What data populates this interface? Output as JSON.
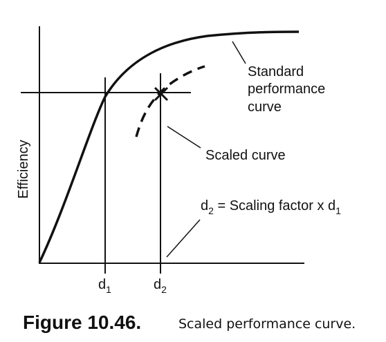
{
  "diagram": {
    "y_axis_label": "Efficiency",
    "standard_curve_label": [
      "Standard",
      "performance",
      "curve"
    ],
    "scaled_curve_label": "Scaled curve",
    "markers": [
      {
        "main": "d",
        "sub": "1"
      },
      {
        "main": "d",
        "sub": "2"
      }
    ],
    "equation": {
      "lhs_main": "d",
      "lhs_sub": "2",
      "middle": " = Scaling factor x d",
      "rhs_sub": "1"
    }
  },
  "caption": {
    "label": "Figure 10.46.",
    "text": "Scaled performance curve."
  }
}
